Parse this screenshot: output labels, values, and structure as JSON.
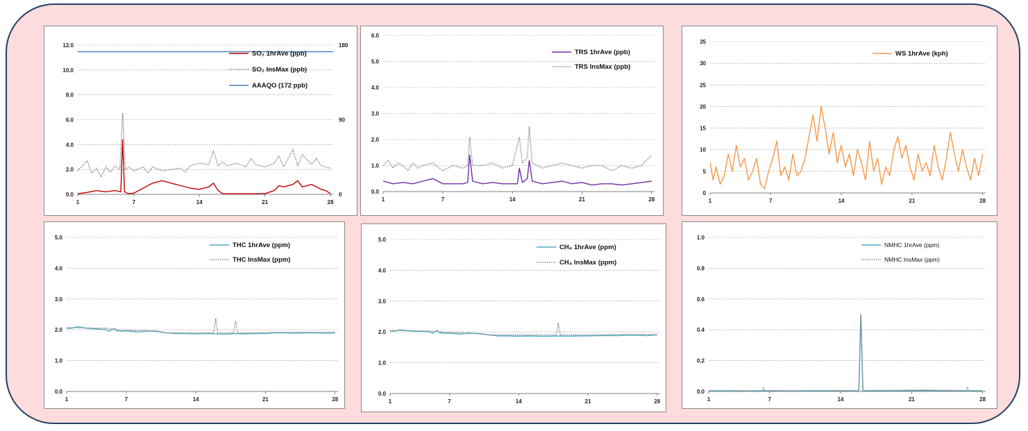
{
  "chart_data": [
    {
      "id": "so2",
      "type": "line",
      "x_ticks": [
        "1",
        "7",
        "14",
        "21",
        "28"
      ],
      "xlim": [
        1,
        28.3
      ],
      "ylim": [
        0,
        12
      ],
      "y_ticks": [
        "0.0",
        "2.0",
        "4.0",
        "6.0",
        "8.0",
        "10.0",
        "12.0"
      ],
      "y2lim": [
        0,
        180
      ],
      "y2_ticks": [
        "0",
        "90",
        "180"
      ],
      "legend": [
        {
          "name": "SO₂ 1hrAve (ppb)",
          "color": "#c00000",
          "style": "solid"
        },
        {
          "name": "SO₂ InsMax (ppb)",
          "color": "#8c8c8c",
          "style": "dotted"
        },
        {
          "name": "AAAQO (172 ppb)",
          "color": "#4f81bd",
          "style": "solid"
        }
      ],
      "series": [
        {
          "name": "SO₂ 1hrAve (ppb)",
          "color": "#c00000",
          "style": "solid",
          "x": [
            1,
            2,
            3,
            4,
            5,
            5.6,
            5.8,
            6,
            6.4,
            7,
            8,
            9,
            10,
            11,
            12,
            13,
            14,
            15,
            15.5,
            16,
            16.5,
            17,
            18,
            19,
            20,
            21,
            22,
            22.5,
            23,
            24,
            24.5,
            25,
            26,
            27,
            27.5,
            28
          ],
          "y": [
            0.05,
            0.15,
            0.3,
            0.2,
            0.3,
            0.2,
            4.4,
            0.2,
            0.05,
            0.1,
            0.5,
            0.9,
            1.1,
            0.9,
            0.7,
            0.5,
            0.4,
            0.6,
            0.9,
            0.3,
            0.05,
            0.05,
            0.05,
            0.05,
            0.05,
            0.05,
            0.3,
            0.7,
            0.6,
            0.8,
            1.1,
            0.6,
            0.8,
            0.4,
            0.3,
            0.05
          ]
        },
        {
          "name": "SO₂ InsMax (ppb)",
          "color": "#8c8c8c",
          "style": "dotted",
          "x": [
            1,
            1.5,
            2,
            2.5,
            3,
            3.5,
            4,
            4.5,
            5,
            5.5,
            5.8,
            6.1,
            6.5,
            7,
            8,
            8.5,
            9,
            10,
            11,
            12,
            12.5,
            13,
            14,
            15,
            15.5,
            16,
            16.5,
            17,
            18,
            19,
            19.5,
            20,
            21,
            22,
            22.5,
            23,
            24,
            24.5,
            25,
            26,
            26.5,
            27,
            28
          ],
          "y": [
            1.9,
            2.3,
            2.7,
            1.7,
            2.1,
            1.4,
            2.2,
            1.8,
            2.3,
            2.0,
            6.5,
            2.0,
            2.2,
            1.9,
            2.2,
            1.7,
            2.2,
            1.9,
            2.0,
            2.1,
            1.8,
            2.3,
            2.5,
            2.4,
            3.5,
            2.3,
            2.6,
            2.3,
            2.5,
            2.2,
            2.9,
            2.4,
            2.2,
            2.5,
            3.1,
            2.2,
            3.6,
            2.3,
            3.2,
            2.4,
            2.9,
            2.3,
            2.1
          ]
        },
        {
          "name": "AAAQO (172 ppb)",
          "color": "#4f81bd",
          "style": "solid",
          "x": [
            1,
            28.3
          ],
          "y": [
            11.47,
            11.47
          ]
        }
      ]
    },
    {
      "id": "trs",
      "type": "line",
      "x_ticks": [
        "1",
        "7",
        "14",
        "21",
        "28"
      ],
      "xlim": [
        1,
        28.3
      ],
      "ylim": [
        0,
        6
      ],
      "y_ticks": [
        "0.0",
        "1.0",
        "2.0",
        "3.0",
        "4.0",
        "5.0",
        "6.0"
      ],
      "legend": [
        {
          "name": "TRS 1hrAve (ppb)",
          "color": "#7030a0",
          "style": "solid"
        },
        {
          "name": "TRS InsMax (ppb)",
          "color": "#8c8c8c",
          "style": "dotted"
        }
      ],
      "series": [
        {
          "name": "TRS 1hrAve (ppb)",
          "color": "#7030a0",
          "style": "solid",
          "x": [
            1,
            2,
            3,
            4,
            5,
            6,
            7,
            8,
            9,
            9.5,
            9.7,
            10,
            11,
            12,
            13,
            14,
            14.5,
            14.7,
            15,
            15.5,
            15.7,
            16,
            17,
            18,
            19,
            20,
            21,
            22,
            23,
            24,
            25,
            26,
            27,
            28
          ],
          "y": [
            0.4,
            0.3,
            0.35,
            0.3,
            0.4,
            0.5,
            0.3,
            0.3,
            0.3,
            0.35,
            1.4,
            0.4,
            0.3,
            0.35,
            0.3,
            0.3,
            0.3,
            0.9,
            0.35,
            0.5,
            1.2,
            0.4,
            0.3,
            0.35,
            0.4,
            0.3,
            0.35,
            0.25,
            0.3,
            0.3,
            0.25,
            0.3,
            0.35,
            0.4
          ]
        },
        {
          "name": "TRS InsMax (ppb)",
          "color": "#8c8c8c",
          "style": "dotted",
          "x": [
            1,
            1.5,
            2,
            2.5,
            3,
            3.5,
            4,
            4.5,
            5,
            6,
            7,
            8,
            9,
            9.5,
            9.7,
            10,
            11,
            12,
            13,
            14,
            14.7,
            15,
            15.5,
            15.7,
            16,
            17,
            18,
            19,
            20,
            21,
            22,
            23,
            24,
            25,
            26,
            27,
            28
          ],
          "y": [
            1.0,
            1.2,
            0.9,
            1.1,
            1.0,
            0.8,
            1.1,
            0.9,
            1.0,
            1.1,
            0.8,
            1.0,
            0.9,
            1.0,
            2.1,
            1.0,
            1.0,
            1.1,
            0.9,
            1.0,
            2.1,
            1.1,
            1.3,
            2.5,
            1.1,
            0.9,
            1.0,
            1.1,
            1.0,
            0.9,
            1.0,
            1.0,
            0.8,
            1.0,
            0.9,
            1.0,
            1.4
          ]
        }
      ]
    },
    {
      "id": "ws",
      "type": "line",
      "x_ticks": [
        "1",
        "7",
        "14",
        "21",
        "28"
      ],
      "xlim": [
        1,
        28.3
      ],
      "ylim": [
        0,
        35
      ],
      "y_ticks": [
        "0",
        "5",
        "10",
        "15",
        "20",
        "25",
        "30",
        "35"
      ],
      "legend": [
        {
          "name": "WS 1hrAve (kph)",
          "color": "#f79646",
          "style": "solid"
        }
      ],
      "series": [
        {
          "name": "WS 1hrAve (kph)",
          "color": "#f79646",
          "style": "solid",
          "x": [
            1,
            1.3,
            1.6,
            2,
            2.4,
            2.8,
            3.2,
            3.6,
            4,
            4.4,
            4.8,
            5.2,
            5.6,
            6,
            6.4,
            6.8,
            7.2,
            7.6,
            8,
            8.4,
            8.8,
            9.2,
            9.6,
            10,
            10.4,
            10.8,
            11.2,
            11.6,
            12,
            12.4,
            12.8,
            13.2,
            13.6,
            14,
            14.4,
            14.8,
            15.2,
            15.6,
            16,
            16.4,
            16.8,
            17.2,
            17.6,
            18,
            18.4,
            18.8,
            19.2,
            19.6,
            20,
            20.4,
            20.8,
            21.2,
            21.6,
            22,
            22.4,
            22.8,
            23.2,
            23.6,
            24,
            24.4,
            24.8,
            25.2,
            25.6,
            26,
            26.4,
            26.8,
            27.2,
            27.6,
            28
          ],
          "y": [
            7,
            3,
            6,
            2,
            4,
            9,
            5,
            11,
            6,
            8,
            3,
            5,
            8,
            2,
            1,
            5,
            8,
            12,
            4,
            6,
            3,
            9,
            4,
            5,
            8,
            13,
            18,
            12,
            20,
            15,
            9,
            14,
            7,
            11,
            6,
            9,
            4,
            10,
            7,
            3,
            12,
            5,
            8,
            2,
            6,
            4,
            10,
            13,
            8,
            11,
            6,
            3,
            9,
            5,
            7,
            4,
            11,
            6,
            3,
            8,
            14,
            9,
            5,
            10,
            6,
            3,
            8,
            4,
            9
          ]
        }
      ]
    },
    {
      "id": "thc",
      "type": "line",
      "x_ticks": [
        "1",
        "7",
        "14",
        "21",
        "28"
      ],
      "xlim": [
        1,
        28.3
      ],
      "ylim": [
        0,
        5
      ],
      "y_ticks": [
        "0.0",
        "1.0",
        "2.0",
        "3.0",
        "4.0",
        "5.0"
      ],
      "legend": [
        {
          "name": "THC 1hrAve (ppm)",
          "color": "#4bacc6",
          "style": "solid"
        },
        {
          "name": "THC InsMax (ppm)",
          "color": "#8c8c8c",
          "style": "dotted"
        }
      ],
      "series": [
        {
          "name": "THC 1hrAve (ppm)",
          "color": "#4bacc6",
          "style": "solid",
          "x": [
            1,
            1.5,
            2,
            2.5,
            3,
            3.5,
            4,
            4.5,
            5,
            5.3,
            5.5,
            5.8,
            6,
            6.5,
            7,
            8,
            9,
            10,
            11,
            12,
            13,
            14,
            15,
            16,
            17,
            18,
            19,
            20,
            21,
            22,
            23,
            24,
            25,
            26,
            27,
            28
          ],
          "y": [
            2.05,
            2.05,
            2.1,
            2.08,
            2.05,
            2.04,
            2.03,
            2.02,
            2.0,
            1.95,
            2.0,
            2.05,
            1.97,
            1.95,
            1.97,
            1.93,
            1.95,
            1.96,
            1.9,
            1.88,
            1.88,
            1.87,
            1.88,
            1.87,
            1.86,
            1.88,
            1.87,
            1.88,
            1.88,
            1.9,
            1.9,
            1.89,
            1.9,
            1.9,
            1.89,
            1.9
          ]
        },
        {
          "name": "THC InsMax (ppm)",
          "color": "#8c8c8c",
          "style": "dotted",
          "x": [
            1,
            5,
            7,
            9,
            11,
            13,
            15,
            15.8,
            16,
            16.2,
            17,
            17.8,
            18,
            18.2,
            20,
            22,
            24,
            26,
            28
          ],
          "y": [
            2.07,
            2.05,
            1.98,
            1.98,
            1.9,
            1.9,
            1.9,
            1.9,
            2.35,
            1.9,
            1.9,
            1.9,
            2.3,
            1.9,
            1.9,
            1.92,
            1.92,
            1.92,
            1.92
          ]
        }
      ]
    },
    {
      "id": "ch4",
      "type": "line",
      "x_ticks": [
        "1",
        "7",
        "14",
        "21",
        "28"
      ],
      "xlim": [
        1,
        28.3
      ],
      "ylim": [
        0,
        5
      ],
      "y_ticks": [
        "0.0",
        "1.0",
        "2.0",
        "3.0",
        "4.0",
        "5.0"
      ],
      "legend": [
        {
          "name": "CH₄ 1hrAve (ppm)",
          "color": "#4bacc6",
          "style": "solid"
        },
        {
          "name": "CH₄ InsMax (ppm)",
          "color": "#8c8c8c",
          "style": "dotted"
        }
      ],
      "series": [
        {
          "name": "CH₄ 1hrAve (ppm)",
          "color": "#4bacc6",
          "style": "solid",
          "x": [
            1,
            1.5,
            2,
            2.5,
            3,
            3.5,
            4,
            4.5,
            5,
            5.3,
            5.5,
            5.8,
            6,
            6.5,
            7,
            8,
            9,
            10,
            11,
            12,
            13,
            14,
            15,
            16,
            17,
            18,
            19,
            20,
            21,
            22,
            23,
            24,
            25,
            26,
            27,
            28
          ],
          "y": [
            2.02,
            2.03,
            2.07,
            2.05,
            2.03,
            2.02,
            2.02,
            2.01,
            2.0,
            1.95,
            2.0,
            2.05,
            1.97,
            1.95,
            1.96,
            1.93,
            1.95,
            1.95,
            1.9,
            1.87,
            1.87,
            1.86,
            1.87,
            1.86,
            1.86,
            1.87,
            1.86,
            1.87,
            1.87,
            1.88,
            1.88,
            1.88,
            1.89,
            1.89,
            1.88,
            1.9
          ]
        },
        {
          "name": "CH₄ InsMax (ppm)",
          "color": "#8c8c8c",
          "style": "dotted",
          "x": [
            1,
            5,
            7,
            9,
            11,
            13,
            15,
            17,
            17.8,
            18,
            18.2,
            20,
            22,
            24,
            26,
            28
          ],
          "y": [
            2.05,
            2.03,
            1.98,
            1.97,
            1.9,
            1.9,
            1.9,
            1.9,
            1.9,
            2.3,
            1.9,
            1.9,
            1.9,
            1.92,
            1.92,
            1.92
          ]
        }
      ]
    },
    {
      "id": "nmhc",
      "type": "line",
      "x_ticks": [
        "1",
        "7",
        "14",
        "21",
        "28"
      ],
      "xlim": [
        1,
        28.3
      ],
      "ylim": [
        0,
        1
      ],
      "y_ticks": [
        "0.0",
        "0.2",
        "0.4",
        "0.6",
        "0.8",
        "1.0"
      ],
      "legend": [
        {
          "name": "NMHC 1hrAve (ppm)",
          "color": "#4bacc6",
          "style": "solid"
        },
        {
          "name": "NMHC InsMax (ppm)",
          "color": "#8c8c8c",
          "style": "dotted"
        }
      ],
      "series": [
        {
          "name": "NMHC 1hrAve (ppm)",
          "color": "#4bacc6",
          "style": "solid",
          "x": [
            1,
            3,
            5,
            7,
            9,
            11,
            13,
            15,
            15.8,
            16,
            16.2,
            18,
            20,
            22,
            24,
            26,
            28
          ],
          "y": [
            0.003,
            0.004,
            0.003,
            0.005,
            0.003,
            0.004,
            0.004,
            0.005,
            0.004,
            0.5,
            0.004,
            0.005,
            0.004,
            0.006,
            0.005,
            0.004,
            0.005
          ]
        },
        {
          "name": "NMHC InsMax (ppm)",
          "color": "#8c8c8c",
          "style": "dotted",
          "x": [
            1,
            6.3,
            6.4,
            6.5,
            10,
            15.8,
            16,
            16.2,
            22,
            26.4,
            26.5,
            26.6,
            28
          ],
          "y": [
            0.005,
            0.005,
            0.03,
            0.005,
            0.005,
            0.005,
            0.5,
            0.005,
            0.01,
            0.005,
            0.03,
            0.005,
            0.005
          ]
        }
      ]
    }
  ]
}
